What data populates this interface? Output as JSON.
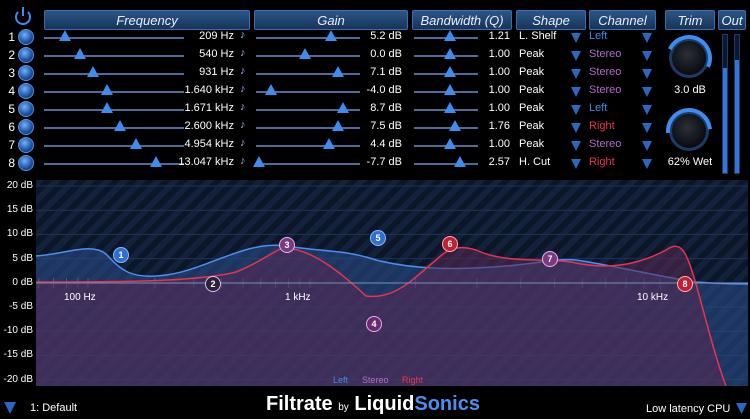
{
  "header": {
    "frequency": "Frequency",
    "gain": "Gain",
    "bandwidth": "Bandwidth (Q)",
    "shape": "Shape",
    "channel": "Channel",
    "trim": "Trim",
    "out": "Out"
  },
  "bands": [
    {
      "num": "1",
      "freq": "209 Hz",
      "gain": "5.2 dB",
      "q": "1.21",
      "shape": "L. Shelf",
      "channel": "Left"
    },
    {
      "num": "2",
      "freq": "540 Hz",
      "gain": "0.0 dB",
      "q": "1.00",
      "shape": "Peak",
      "channel": "Stereo"
    },
    {
      "num": "3",
      "freq": "931 Hz",
      "gain": "7.1 dB",
      "q": "1.00",
      "shape": "Peak",
      "channel": "Stereo"
    },
    {
      "num": "4",
      "freq": "1.640 kHz",
      "gain": "-4.0 dB",
      "q": "1.00",
      "shape": "Peak",
      "channel": "Stereo"
    },
    {
      "num": "5",
      "freq": "1.671 kHz",
      "gain": "8.7 dB",
      "q": "1.00",
      "shape": "Peak",
      "channel": "Left"
    },
    {
      "num": "6",
      "freq": "2.600 kHz",
      "gain": "7.5 dB",
      "q": "1.76",
      "shape": "Peak",
      "channel": "Right"
    },
    {
      "num": "7",
      "freq": "4.954 kHz",
      "gain": "4.4 dB",
      "q": "1.00",
      "shape": "Peak",
      "channel": "Stereo"
    },
    {
      "num": "8",
      "freq": "13.047 kHz",
      "gain": "-7.7 dB",
      "q": "2.57",
      "shape": "H. Cut",
      "channel": "Right"
    }
  ],
  "colors": {
    "Left": "#3f8ae8",
    "Stereo": "#b06cc8",
    "Right": "#e8334a"
  },
  "trim": {
    "value": "3.0 dB",
    "wet": "62% Wet"
  },
  "graph": {
    "ylabels": [
      "20 dB",
      "15 dB",
      "10 dB",
      "5 dB",
      "0 dB",
      "-5 dB",
      "-10 dB",
      "-15 dB",
      "-20 dB"
    ],
    "xlabels": [
      "100 Hz",
      "1 kHz",
      "10 kHz"
    ],
    "legend": {
      "left": "Left",
      "stereo": "Stereo",
      "right": "Right"
    }
  },
  "footer": {
    "preset": "1: Default",
    "brand_pre": "Filtrate",
    "brand_by": "by",
    "brand_liquid": "Liquid",
    "brand_sonics": "Sonics",
    "cpu": "Low latency CPU"
  }
}
